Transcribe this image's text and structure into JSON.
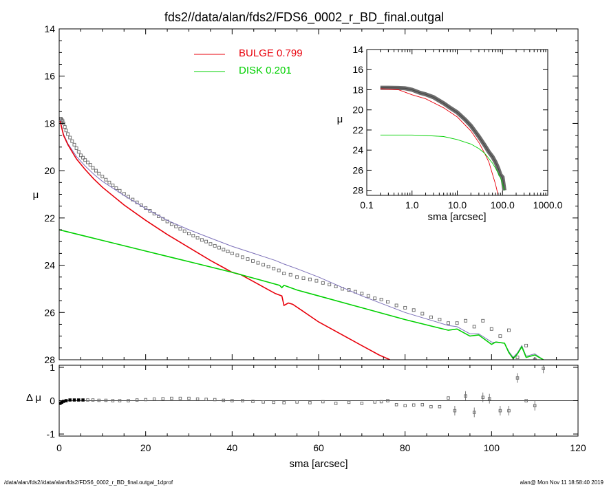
{
  "title": "fds2//data/alan/fds2/FDS6_0002_r_BD_final.outgal",
  "footer": {
    "left": "/data/alan/fds2//data/alan/fds2/FDS6_0002_r_BD_final.outgal_1dprof",
    "right": "alan@  Mon Nov 11 18:58:40 2019"
  },
  "legend": {
    "bulge_label": "BULGE  0.799",
    "disk_label": "DISK  0.201"
  },
  "colors": {
    "bulge": "#e8000b",
    "disk": "#00d000",
    "data": "#666666",
    "model": "#7b6fb8",
    "axis": "#000000"
  },
  "chart_data": [
    {
      "type": "scatter",
      "panel": "main",
      "xlabel": "sma [arcsec]",
      "ylabel": "μ",
      "xlim": [
        0,
        120
      ],
      "ylim": [
        28,
        14
      ],
      "y_inverted": true,
      "xticks": [
        0,
        20,
        40,
        60,
        80,
        100,
        120
      ],
      "yticks": [
        14,
        16,
        18,
        20,
        22,
        24,
        26,
        28
      ],
      "series": [
        {
          "name": "BULGE",
          "role": "bulge-model",
          "x": [
            0.2,
            1,
            2,
            4,
            6,
            8,
            10,
            15,
            20,
            25,
            30,
            35,
            38,
            40,
            42,
            45,
            48,
            50,
            51.5,
            52,
            53,
            54,
            56,
            60,
            65,
            70,
            74,
            76.5
          ],
          "y": [
            17.9,
            18.5,
            18.9,
            19.5,
            19.95,
            20.35,
            20.7,
            21.45,
            22.1,
            22.7,
            23.25,
            23.8,
            24.1,
            24.3,
            24.4,
            24.7,
            25.0,
            25.2,
            25.3,
            25.7,
            25.6,
            25.65,
            25.9,
            26.4,
            26.9,
            27.4,
            27.8,
            28.0
          ]
        },
        {
          "name": "DISK",
          "role": "disk-model",
          "x": [
            0,
            10,
            20,
            30,
            40,
            45,
            48,
            51,
            51.5,
            52,
            55,
            60,
            70,
            80,
            90,
            92,
            94,
            95,
            97,
            100,
            101,
            103,
            104,
            105,
            106,
            107,
            108,
            110,
            112
          ],
          "y": [
            22.5,
            22.95,
            23.4,
            23.85,
            24.3,
            24.55,
            24.7,
            24.85,
            24.95,
            24.85,
            25.05,
            25.3,
            25.8,
            26.3,
            26.75,
            26.7,
            26.9,
            27.0,
            26.95,
            27.35,
            27.25,
            27.3,
            27.7,
            27.95,
            27.75,
            27.45,
            27.9,
            27.8,
            28.0
          ]
        },
        {
          "name": "model",
          "role": "total-model",
          "x": [
            0.2,
            1,
            2,
            4,
            6,
            8,
            10,
            15,
            20,
            25,
            30,
            35,
            40,
            45,
            50,
            52,
            55,
            60,
            70,
            80,
            90,
            92,
            94,
            95,
            97,
            100,
            103,
            104,
            105,
            106,
            107,
            108,
            110,
            112
          ],
          "y": [
            17.85,
            18.45,
            18.85,
            19.4,
            19.8,
            20.15,
            20.45,
            21.05,
            21.6,
            22.1,
            22.5,
            22.85,
            23.2,
            23.5,
            23.8,
            23.95,
            24.15,
            24.5,
            25.3,
            26.0,
            26.55,
            26.6,
            26.8,
            26.9,
            26.9,
            27.25,
            27.3,
            27.65,
            27.9,
            27.7,
            27.4,
            27.85,
            27.75,
            28.0
          ]
        },
        {
          "name": "data",
          "role": "observed-profile",
          "x": [
            0.2,
            0.4,
            0.6,
            0.8,
            1.0,
            1.3,
            1.6,
            2.0,
            2.5,
            3.0,
            3.5,
            4.0,
            4.5,
            5.0,
            5.5,
            6.0,
            6.6,
            7.2,
            7.8,
            8.5,
            9.2,
            10.0,
            10.8,
            11.6,
            12.4,
            13.2,
            14.0,
            15.0,
            16.0,
            17.0,
            18.0,
            19.0,
            20.0,
            21.0,
            22.0,
            23.0,
            24.0,
            25.0,
            26.0,
            27.0,
            28.0,
            29.0,
            30.0,
            31.0,
            32.0,
            33.0,
            34.0,
            35.0,
            36.0,
            37.0,
            38.0,
            39.0,
            40.0,
            41.2,
            42.4,
            43.6,
            44.8,
            46.0,
            47.2,
            48.4,
            49.6,
            50.8,
            52.0,
            53.5,
            55.0,
            56.5,
            58.0,
            59.5,
            61.0,
            62.5,
            64.0,
            65.5,
            67.0,
            68.5,
            70.0,
            71.5,
            73.0,
            74.5,
            76.0,
            78.0,
            80.0,
            82.0,
            84.0,
            86.0,
            88.0,
            90.0,
            92.0,
            94.0,
            96.0,
            98.0,
            100.0,
            102.0,
            104.0,
            106.0,
            108.0,
            110.0,
            112.0
          ],
          "y": [
            17.8,
            17.8,
            17.85,
            17.9,
            18.0,
            18.15,
            18.3,
            18.45,
            18.6,
            18.75,
            18.9,
            19.05,
            19.2,
            19.35,
            19.45,
            19.55,
            19.65,
            19.75,
            19.88,
            20.0,
            20.12,
            20.25,
            20.38,
            20.5,
            20.62,
            20.74,
            20.85,
            20.98,
            21.1,
            21.22,
            21.34,
            21.46,
            21.58,
            21.7,
            21.82,
            21.93,
            22.04,
            22.15,
            22.26,
            22.36,
            22.46,
            22.56,
            22.66,
            22.75,
            22.84,
            22.93,
            23.0,
            23.1,
            23.18,
            23.26,
            23.34,
            23.42,
            23.5,
            23.58,
            23.66,
            23.74,
            23.82,
            23.9,
            23.98,
            24.06,
            24.14,
            24.22,
            24.35,
            24.4,
            24.5,
            24.55,
            24.6,
            24.66,
            24.75,
            24.82,
            24.9,
            25.0,
            25.05,
            25.12,
            25.2,
            25.3,
            25.4,
            25.45,
            25.55,
            25.7,
            25.8,
            25.9,
            26.05,
            26.2,
            26.3,
            26.45,
            26.45,
            26.35,
            26.6,
            26.35,
            26.7,
            27.0,
            26.75,
            27.9,
            27.4,
            28.0,
            28.1
          ]
        }
      ]
    },
    {
      "type": "scatter",
      "panel": "residual",
      "xlabel": "sma [arcsec]",
      "ylabel": "Δ μ",
      "xlim": [
        0,
        120
      ],
      "ylim": [
        -1,
        1
      ],
      "xticks": [
        0,
        20,
        40,
        60,
        80,
        100,
        120
      ],
      "yticks": [
        -1,
        0,
        1
      ],
      "zero_line": true,
      "series": [
        {
          "name": "residual",
          "x": [
            0.2,
            0.6,
            1.0,
            1.6,
            2.5,
            3.5,
            4.5,
            5.5,
            6.6,
            7.8,
            9.2,
            10.8,
            12.4,
            14.0,
            16.0,
            18.0,
            20.0,
            22.0,
            24.0,
            26.0,
            28.0,
            30.0,
            32.0,
            34.0,
            36.0,
            38.0,
            40.0,
            42.4,
            44.8,
            47.2,
            49.6,
            52.0,
            55.0,
            58.0,
            61.0,
            64.0,
            67.0,
            70.0,
            73.0,
            74.5,
            76.0,
            78.0,
            80.0,
            82.0,
            84.0,
            86.0,
            88.0,
            90.0,
            91.5,
            94.0,
            96.0,
            98.0,
            99.5,
            102.0,
            104.0,
            106.0,
            108.0,
            110.0,
            112.0
          ],
          "y": [
            -0.08,
            -0.05,
            -0.02,
            0.0,
            0.02,
            0.02,
            0.02,
            0.02,
            0.02,
            0.02,
            0.01,
            0.01,
            0.0,
            0.0,
            0.0,
            0.02,
            0.03,
            0.05,
            0.06,
            0.07,
            0.07,
            0.07,
            0.05,
            0.04,
            0.03,
            0.01,
            0.0,
            0.0,
            -0.02,
            -0.04,
            -0.05,
            -0.06,
            -0.04,
            -0.06,
            -0.03,
            -0.08,
            -0.05,
            -0.08,
            -0.04,
            -0.03,
            0.0,
            -0.12,
            -0.15,
            -0.13,
            -0.12,
            -0.18,
            -0.18,
            0.08,
            -0.3,
            0.14,
            -0.35,
            0.1,
            0.06,
            -0.3,
            -0.3,
            0.68,
            0.0,
            -0.15,
            0.97
          ]
        }
      ]
    },
    {
      "type": "line",
      "panel": "inset",
      "xlabel": "sma [arcsec]",
      "ylabel": "μ",
      "xscale": "log",
      "xlim": [
        0.1,
        1000
      ],
      "ylim": [
        28.5,
        14
      ],
      "y_inverted": true,
      "xtick_labels": [
        "0.1",
        "1.0",
        "10.0",
        "100.0",
        "1000.0"
      ],
      "ytick_labels": [
        "14",
        "16",
        "18",
        "20",
        "22",
        "24",
        "26",
        "28"
      ],
      "series": [
        {
          "name": "BULGE",
          "role": "bulge-model",
          "x": [
            0.2,
            0.5,
            1,
            2,
            5,
            10,
            20,
            30,
            40,
            50,
            60,
            70,
            80
          ],
          "y": [
            17.9,
            18.0,
            18.5,
            18.9,
            19.8,
            20.7,
            22.1,
            23.25,
            24.3,
            25.2,
            26.4,
            27.4,
            28.5
          ]
        },
        {
          "name": "DISK",
          "role": "disk-model",
          "x": [
            0.2,
            1,
            2,
            5,
            10,
            20,
            30,
            40,
            50,
            60,
            70,
            80,
            90,
            100,
            110
          ],
          "y": [
            22.5,
            22.5,
            22.55,
            22.65,
            22.95,
            23.4,
            23.85,
            24.3,
            24.85,
            25.3,
            25.8,
            26.3,
            26.75,
            27.35,
            28.0
          ]
        },
        {
          "name": "data",
          "role": "observed-profile",
          "x": [
            0.2,
            0.3,
            0.5,
            0.7,
            1,
            1.5,
            2,
            3,
            5,
            7,
            10,
            15,
            20,
            30,
            40,
            50,
            60,
            70,
            80,
            90,
            100,
            110
          ],
          "y": [
            17.8,
            17.8,
            17.82,
            17.85,
            18.0,
            18.3,
            18.45,
            18.75,
            19.35,
            19.8,
            20.25,
            20.98,
            21.58,
            22.66,
            23.5,
            24.2,
            24.66,
            25.2,
            25.8,
            26.45,
            26.7,
            28.0
          ]
        }
      ]
    }
  ]
}
